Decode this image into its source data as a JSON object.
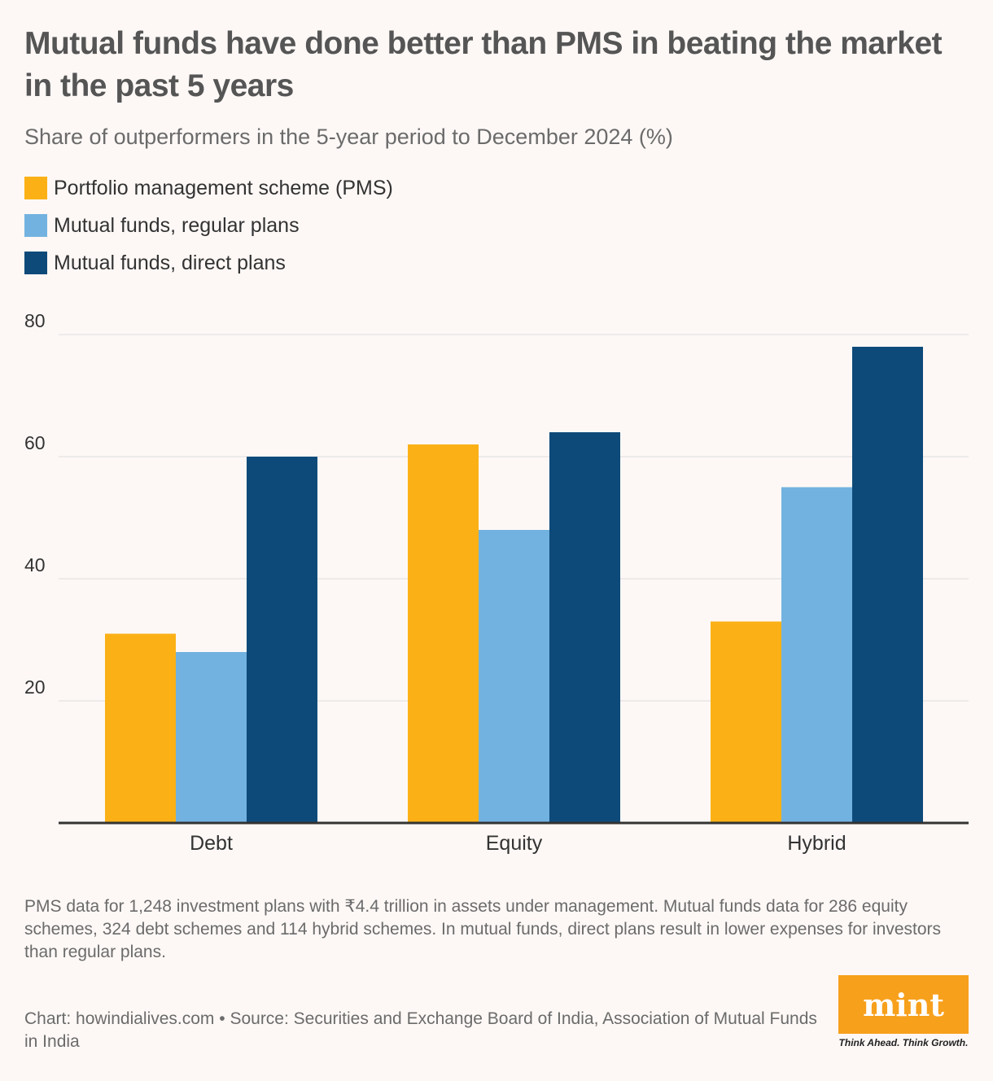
{
  "title": "Mutual funds have done better than PMS in beating the market in the past 5 years",
  "subtitle": "Share of outperformers in the 5-year period to December 2024 (%)",
  "legend": [
    {
      "label": "Portfolio management scheme (PMS)",
      "color": "#fbb116"
    },
    {
      "label": "Mutual funds, regular plans",
      "color": "#72b2e0"
    },
    {
      "label": "Mutual funds, direct plans",
      "color": "#0d4a79"
    }
  ],
  "chart_data": {
    "type": "bar",
    "categories": [
      "Debt",
      "Equity",
      "Hybrid"
    ],
    "series": [
      {
        "name": "Portfolio management scheme (PMS)",
        "color": "#fbb116",
        "values": [
          31,
          62,
          33
        ]
      },
      {
        "name": "Mutual funds, regular plans",
        "color": "#72b2e0",
        "values": [
          28,
          48,
          55
        ]
      },
      {
        "name": "Mutual funds, direct plans",
        "color": "#0d4a79",
        "values": [
          60,
          64,
          78
        ]
      }
    ],
    "yticks": [
      20,
      40,
      60,
      80
    ],
    "ylim": [
      0,
      80
    ],
    "grid": true,
    "legend_position": "top-left"
  },
  "note": "PMS data for 1,248 investment plans with ₹4.4 trillion in assets under management. Mutual funds data for 286 equity schemes, 324 debt schemes and 114 hybrid schemes. In mutual funds, direct plans result in lower expenses for investors than regular plans.",
  "source": "Chart: howindialives.com • Source: Securities and Exchange Board of India, Association of Mutual Funds in India",
  "brand": {
    "logo": "mint",
    "tagline": "Think Ahead. Think Growth."
  }
}
